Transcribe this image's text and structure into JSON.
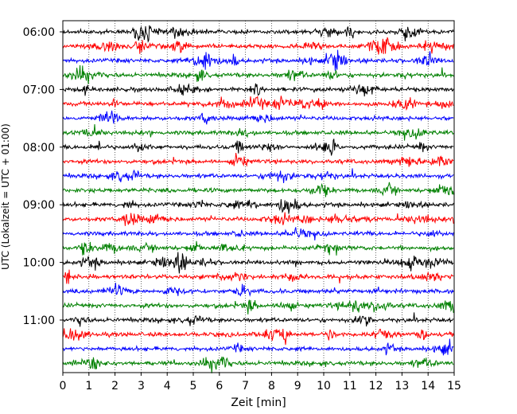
{
  "chart_data": {
    "type": "line",
    "xlabel": "Zeit  [min]",
    "ylabel": "UTC (Lokalzeit = UTC + 01:00)",
    "xlim": [
      0,
      15
    ],
    "x_ticks": [
      "0",
      "1",
      "2",
      "3",
      "4",
      "5",
      "6",
      "7",
      "8",
      "9",
      "10",
      "11",
      "12",
      "13",
      "14",
      "15"
    ],
    "y_tick_labels": [
      "06:00",
      "07:00",
      "08:00",
      "09:00",
      "10:00",
      "11:00"
    ],
    "grid": "vertical dotted lines at each minute",
    "trace_interval_minutes": 15,
    "trace_colors": [
      "#000000",
      "#ff0000",
      "#0000ff",
      "#008000"
    ],
    "traces": [
      {
        "start": "06:00",
        "color": "#000000"
      },
      {
        "start": "06:15",
        "color": "#ff0000"
      },
      {
        "start": "06:30",
        "color": "#0000ff"
      },
      {
        "start": "06:45",
        "color": "#008000"
      },
      {
        "start": "07:00",
        "color": "#000000"
      },
      {
        "start": "07:15",
        "color": "#ff0000"
      },
      {
        "start": "07:30",
        "color": "#0000ff"
      },
      {
        "start": "07:45",
        "color": "#008000"
      },
      {
        "start": "08:00",
        "color": "#000000"
      },
      {
        "start": "08:15",
        "color": "#ff0000"
      },
      {
        "start": "08:30",
        "color": "#0000ff"
      },
      {
        "start": "08:45",
        "color": "#008000"
      },
      {
        "start": "09:00",
        "color": "#000000"
      },
      {
        "start": "09:15",
        "color": "#ff0000"
      },
      {
        "start": "09:30",
        "color": "#0000ff"
      },
      {
        "start": "09:45",
        "color": "#008000"
      },
      {
        "start": "10:00",
        "color": "#000000"
      },
      {
        "start": "10:15",
        "color": "#ff0000"
      },
      {
        "start": "10:30",
        "color": "#0000ff"
      },
      {
        "start": "10:45",
        "color": "#008000"
      },
      {
        "start": "11:00",
        "color": "#000000"
      },
      {
        "start": "11:15",
        "color": "#ff0000"
      },
      {
        "start": "11:30",
        "color": "#0000ff"
      },
      {
        "start": "11:45",
        "color": "#008000"
      }
    ]
  }
}
